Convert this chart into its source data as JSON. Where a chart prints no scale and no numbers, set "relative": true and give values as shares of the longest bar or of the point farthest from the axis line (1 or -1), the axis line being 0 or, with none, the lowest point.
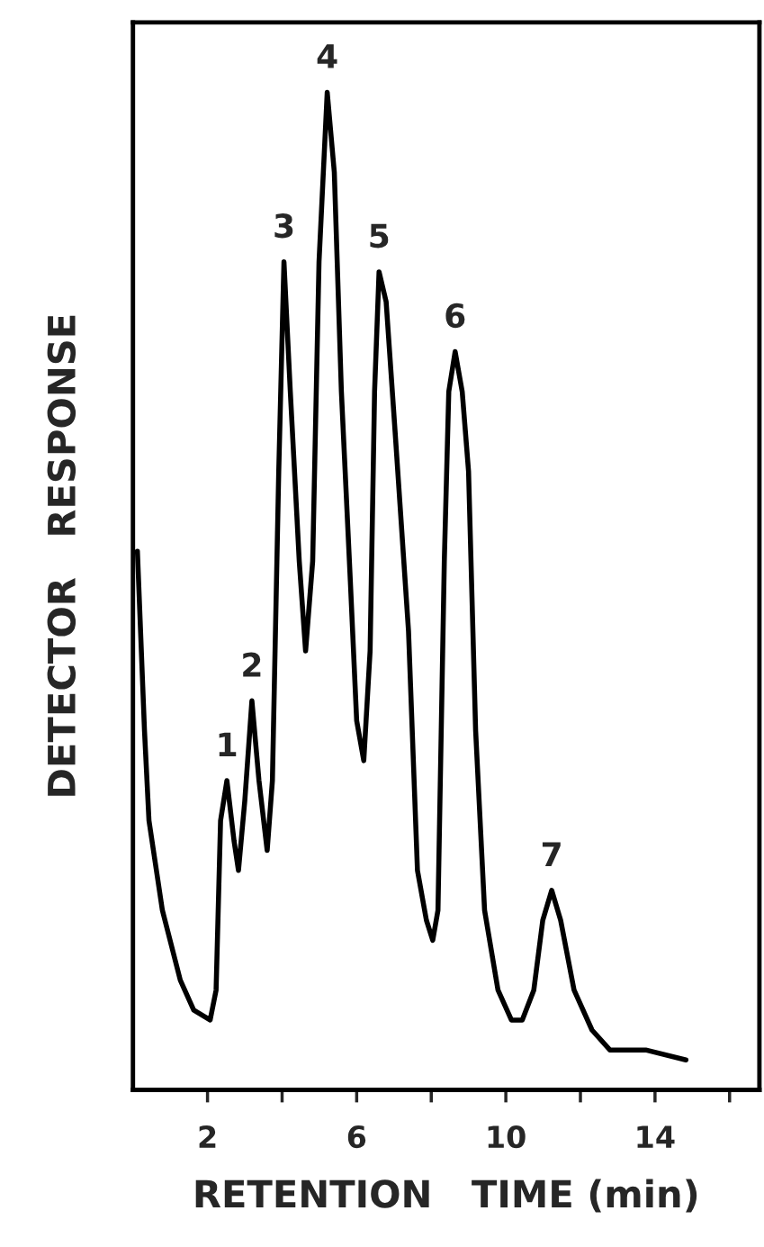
{
  "chart_data": {
    "type": "line",
    "relative": true,
    "xlabel": "RETENTION   TIME (min)",
    "ylabel": "DETECTOR   RESPONSE",
    "xlim": [
      0,
      16.8
    ],
    "xticks": [
      2,
      {
        "value": 4,
        "label": null
      },
      6,
      {
        "value": 8,
        "label": null
      },
      10,
      {
        "value": 12,
        "label": null
      },
      14,
      {
        "value": 16,
        "label": null
      }
    ],
    "grid": false,
    "marker": "none",
    "line_style": "solid",
    "series": [
      {
        "color": "#000000",
        "x": [
          0.12,
          0.31,
          0.43,
          0.79,
          1.27,
          1.63,
          2.07,
          2.23,
          2.35,
          2.52,
          2.71,
          2.83,
          3.0,
          3.19,
          3.38,
          3.6,
          3.74,
          3.91,
          4.05,
          4.22,
          4.46,
          4.63,
          4.82,
          4.99,
          5.21,
          5.4,
          5.59,
          5.83,
          6.0,
          6.19,
          6.36,
          6.48,
          6.6,
          6.79,
          7.03,
          7.39,
          7.63,
          7.87,
          8.04,
          8.18,
          8.35,
          8.47,
          8.64,
          8.83,
          9.0,
          9.19,
          9.43,
          9.79,
          10.15,
          10.44,
          10.75,
          10.99,
          11.23,
          11.47,
          11.83,
          12.31,
          12.79,
          13.75,
          14.83
        ],
        "values": [
          0.54,
          0.36,
          0.27,
          0.18,
          0.11,
          0.08,
          0.07,
          0.1,
          0.27,
          0.31,
          0.25,
          0.22,
          0.29,
          0.39,
          0.31,
          0.24,
          0.31,
          0.62,
          0.83,
          0.7,
          0.53,
          0.44,
          0.53,
          0.83,
          1.0,
          0.92,
          0.7,
          0.51,
          0.37,
          0.33,
          0.44,
          0.7,
          0.82,
          0.79,
          0.66,
          0.46,
          0.22,
          0.17,
          0.15,
          0.18,
          0.53,
          0.7,
          0.74,
          0.7,
          0.62,
          0.36,
          0.18,
          0.1,
          0.07,
          0.07,
          0.1,
          0.17,
          0.2,
          0.17,
          0.1,
          0.06,
          0.04,
          0.04,
          0.03
        ]
      }
    ],
    "annotations": [
      {
        "text": "1",
        "x": 2.52,
        "y": 0.31
      },
      {
        "text": "2",
        "x": 3.19,
        "y": 0.39
      },
      {
        "text": "3",
        "x": 4.05,
        "y": 0.83
      },
      {
        "text": "4",
        "x": 5.21,
        "y": 1.0
      },
      {
        "text": "5",
        "x": 6.6,
        "y": 0.82
      },
      {
        "text": "6",
        "x": 8.64,
        "y": 0.74
      },
      {
        "text": "7",
        "x": 11.23,
        "y": 0.2
      }
    ]
  }
}
